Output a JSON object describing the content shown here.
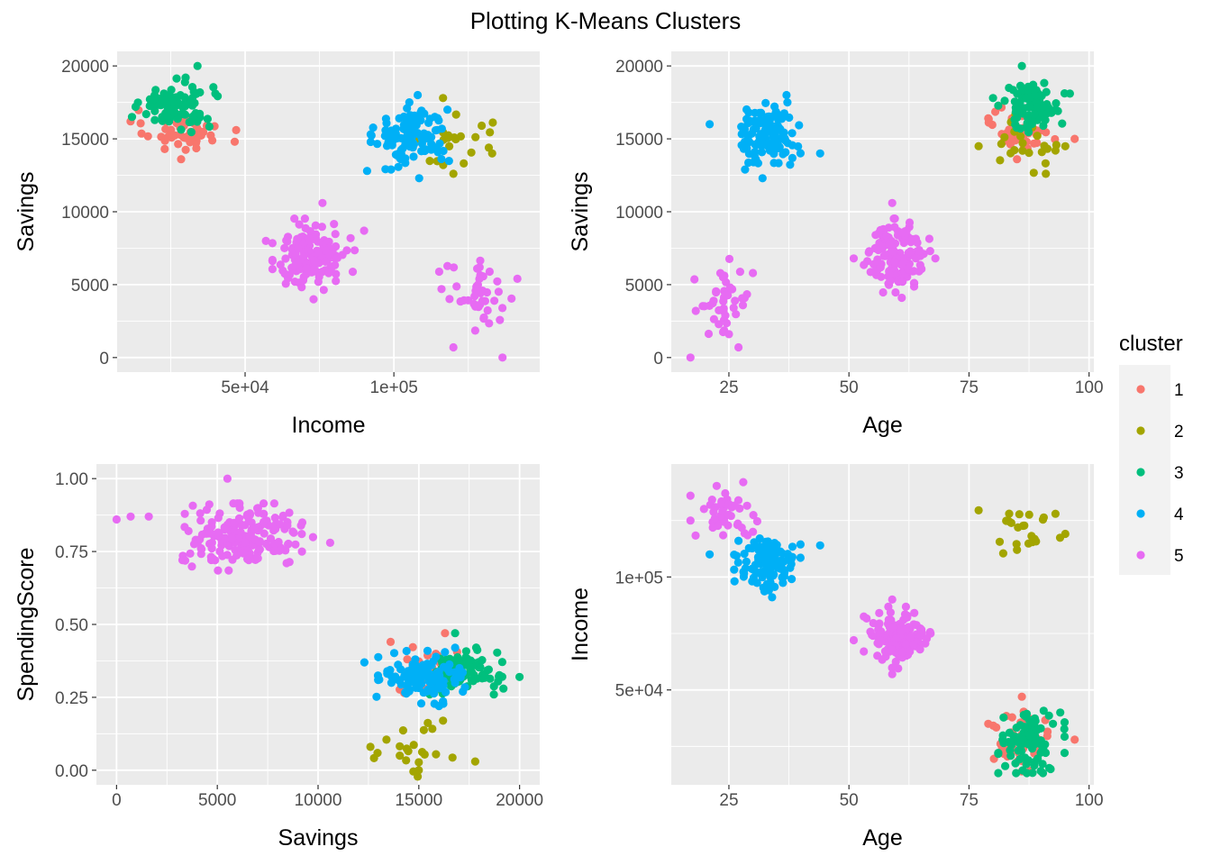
{
  "title": "Plotting K-Means Clusters",
  "colors": {
    "1": "#F8766D",
    "2": "#A3A500",
    "3": "#00BF7D",
    "4": "#00B0F6",
    "5": "#E76BF3",
    "panel_bg": "#EBEBEB",
    "grid": "#FFFFFF",
    "tick_text": "#4D4D4D"
  },
  "legend": {
    "title": "cluster",
    "placement": "right",
    "items": [
      {
        "key": "1",
        "label": "1"
      },
      {
        "key": "2",
        "label": "2"
      },
      {
        "key": "3",
        "label": "3"
      },
      {
        "key": "4",
        "label": "4"
      },
      {
        "key": "5",
        "label": "5"
      }
    ]
  },
  "chart_data": [
    {
      "type": "scatter",
      "xlabel": "Income",
      "ylabel": "Savings",
      "xlim": [
        7000,
        149000
      ],
      "ylim": [
        -1000,
        21000
      ],
      "x_ticks": [
        {
          "value": 50000,
          "label": "5e+04"
        },
        {
          "value": 100000,
          "label": "1e+05"
        }
      ],
      "y_ticks": [
        {
          "value": 0,
          "label": "0"
        },
        {
          "value": 5000,
          "label": "5000"
        },
        {
          "value": 10000,
          "label": "10000"
        },
        {
          "value": 15000,
          "label": "15000"
        },
        {
          "value": 20000,
          "label": "20000"
        }
      ],
      "grid": true,
      "clusters": [
        {
          "cluster": "1",
          "n": 55,
          "x_center": 28000,
          "x_spread": 6000,
          "y_center": 15600,
          "y_spread": 700,
          "extremes": [
            [
              11500,
              16200
            ],
            [
              47000,
              15600
            ],
            [
              46500,
              14800
            ],
            [
              23000,
              14300
            ],
            [
              28500,
              13600
            ]
          ]
        },
        {
          "cluster": "2",
          "n": 24,
          "x_center": 121000,
          "x_spread": 6000,
          "y_center": 14600,
          "y_spread": 900,
          "extremes": [
            [
              116500,
              17800
            ],
            [
              129500,
              15900
            ],
            [
              133000,
              14000
            ],
            [
              120000,
              12600
            ]
          ]
        },
        {
          "cluster": "3",
          "n": 90,
          "x_center": 27000,
          "x_spread": 6000,
          "y_center": 17300,
          "y_spread": 800,
          "extremes": [
            [
              12000,
              16500
            ],
            [
              40000,
              18100
            ],
            [
              34000,
              20000
            ],
            [
              30000,
              19200
            ]
          ]
        },
        {
          "cluster": "4",
          "n": 115,
          "x_center": 106000,
          "x_spread": 6000,
          "y_center": 15200,
          "y_spread": 1000,
          "extremes": [
            [
              91000,
              12800
            ],
            [
              108000,
              18000
            ],
            [
              108500,
              12300
            ],
            [
              118000,
              17000
            ]
          ]
        },
        {
          "cluster": "5",
          "n": 150,
          "x_center": 73000,
          "x_spread": 6000,
          "y_center": 7000,
          "y_spread": 1100,
          "extremes": [
            [
              57000,
              8000
            ],
            [
              90000,
              8700
            ],
            [
              76000,
              10600
            ],
            [
              73000,
              4000
            ]
          ]
        },
        {
          "cluster": "5",
          "n": 45,
          "x_center": 129000,
          "x_spread": 6000,
          "y_center": 4000,
          "y_spread": 1200,
          "extremes": [
            [
              120000,
              700
            ],
            [
              141500,
              5400
            ],
            [
              136500,
              0
            ],
            [
              128000,
              6100
            ],
            [
              116000,
              4700
            ]
          ]
        }
      ]
    },
    {
      "type": "scatter",
      "xlabel": "Age",
      "ylabel": "Savings",
      "xlim": [
        13,
        101
      ],
      "ylim": [
        -1000,
        21000
      ],
      "x_ticks": [
        {
          "value": 25,
          "label": "25"
        },
        {
          "value": 50,
          "label": "50"
        },
        {
          "value": 75,
          "label": "75"
        },
        {
          "value": 100,
          "label": "100"
        }
      ],
      "y_ticks": [
        {
          "value": 0,
          "label": "0"
        },
        {
          "value": 5000,
          "label": "5000"
        },
        {
          "value": 10000,
          "label": "10000"
        },
        {
          "value": 15000,
          "label": "15000"
        },
        {
          "value": 20000,
          "label": "20000"
        }
      ],
      "grid": true,
      "clusters": [
        {
          "cluster": "1",
          "n": 55,
          "x_center": 86,
          "x_spread": 3,
          "y_center": 15600,
          "y_spread": 700,
          "extremes": [
            [
              79,
              16400
            ],
            [
              97,
              15000
            ],
            [
              85,
              13600
            ]
          ]
        },
        {
          "cluster": "2",
          "n": 24,
          "x_center": 87,
          "x_spread": 3.5,
          "y_center": 14600,
          "y_spread": 900,
          "extremes": [
            [
              77,
              14500
            ],
            [
              91,
              12600
            ],
            [
              93,
              14200
            ]
          ]
        },
        {
          "cluster": "3",
          "n": 90,
          "x_center": 88,
          "x_spread": 3,
          "y_center": 17300,
          "y_spread": 800,
          "extremes": [
            [
              86,
              20000
            ],
            [
              80,
              17800
            ],
            [
              96,
              18100
            ]
          ]
        },
        {
          "cluster": "4",
          "n": 115,
          "x_center": 33,
          "x_spread": 3,
          "y_center": 15200,
          "y_spread": 1000,
          "extremes": [
            [
              21,
              16000
            ],
            [
              44,
              14000
            ],
            [
              37,
              18000
            ],
            [
              32,
              12300
            ]
          ]
        },
        {
          "cluster": "5",
          "n": 150,
          "x_center": 60,
          "x_spread": 3,
          "y_center": 7000,
          "y_spread": 1100,
          "extremes": [
            [
              51,
              6800
            ],
            [
              59,
              10600
            ],
            [
              68,
              6800
            ],
            [
              61,
              4100
            ]
          ]
        },
        {
          "cluster": "5",
          "n": 45,
          "x_center": 24,
          "x_spread": 3,
          "y_center": 4000,
          "y_spread": 1200,
          "extremes": [
            [
              17,
              0
            ],
            [
              27,
              700
            ],
            [
              30,
              5800
            ],
            [
              25,
              1600
            ]
          ]
        }
      ]
    },
    {
      "type": "scatter",
      "xlabel": "Savings",
      "ylabel": "SpendingScore",
      "xlim": [
        -1000,
        21000
      ],
      "ylim": [
        -0.05,
        1.05
      ],
      "x_ticks": [
        {
          "value": 0,
          "label": "0"
        },
        {
          "value": 5000,
          "label": "5000"
        },
        {
          "value": 10000,
          "label": "10000"
        },
        {
          "value": 15000,
          "label": "15000"
        },
        {
          "value": 20000,
          "label": "20000"
        }
      ],
      "y_ticks": [
        {
          "value": 0,
          "label": "0.00"
        },
        {
          "value": 0.25,
          "label": "0.25"
        },
        {
          "value": 0.5,
          "label": "0.50"
        },
        {
          "value": 0.75,
          "label": "0.75"
        },
        {
          "value": 1.0,
          "label": "1.00"
        }
      ],
      "grid": true,
      "clusters": [
        {
          "cluster": "1",
          "n": 55,
          "x_center": 15600,
          "x_spread": 700,
          "y_center": 0.33,
          "y_spread": 0.04,
          "extremes": [
            [
              13600,
              0.44
            ],
            [
              16300,
              0.47
            ]
          ]
        },
        {
          "cluster": "2",
          "n": 24,
          "x_center": 14600,
          "x_spread": 900,
          "y_center": 0.07,
          "y_spread": 0.04,
          "extremes": [
            [
              12600,
              0.08
            ],
            [
              17800,
              0.03
            ],
            [
              16200,
              0.17
            ],
            [
              15000,
              0.0
            ]
          ]
        },
        {
          "cluster": "3",
          "n": 90,
          "x_center": 17300,
          "x_spread": 800,
          "y_center": 0.34,
          "y_spread": 0.035,
          "extremes": [
            [
              20000,
              0.32
            ],
            [
              16800,
              0.47
            ],
            [
              19200,
              0.28
            ]
          ]
        },
        {
          "cluster": "4",
          "n": 115,
          "x_center": 15200,
          "x_spread": 1000,
          "y_center": 0.32,
          "y_spread": 0.04,
          "extremes": [
            [
              12300,
              0.37
            ],
            [
              16000,
              0.22
            ],
            [
              16800,
              0.42
            ]
          ]
        },
        {
          "cluster": "5",
          "n": 195,
          "x_center": 6300,
          "x_spread": 1500,
          "y_center": 0.8,
          "y_spread": 0.05,
          "extremes": [
            [
              0,
              0.86
            ],
            [
              700,
              0.87
            ],
            [
              1600,
              0.87
            ],
            [
              5500,
              1.0
            ],
            [
              10600,
              0.78
            ],
            [
              9200,
              0.75
            ]
          ]
        }
      ]
    },
    {
      "type": "scatter",
      "xlabel": "Age",
      "ylabel": "Income",
      "xlim": [
        13,
        101
      ],
      "ylim": [
        8000,
        150000
      ],
      "x_ticks": [
        {
          "value": 25,
          "label": "25"
        },
        {
          "value": 50,
          "label": "50"
        },
        {
          "value": 75,
          "label": "75"
        },
        {
          "value": 100,
          "label": "100"
        }
      ],
      "y_ticks": [
        {
          "value": 50000,
          "label": "5e+04"
        },
        {
          "value": 100000,
          "label": "1e+05"
        }
      ],
      "grid": true,
      "clusters": [
        {
          "cluster": "1",
          "n": 55,
          "x_center": 86,
          "x_spread": 3,
          "y_center": 28000,
          "y_spread": 6000,
          "extremes": [
            [
              79,
              35000
            ],
            [
              86,
              47000
            ],
            [
              86,
              14000
            ],
            [
              97,
              28000
            ]
          ]
        },
        {
          "cluster": "2",
          "n": 24,
          "x_center": 87,
          "x_spread": 3.5,
          "y_center": 121000,
          "y_spread": 5000,
          "extremes": [
            [
              77,
              129500
            ],
            [
              93,
              128000
            ],
            [
              85,
              112000
            ]
          ]
        },
        {
          "cluster": "3",
          "n": 90,
          "x_center": 88,
          "x_spread": 3,
          "y_center": 27000,
          "y_spread": 6000,
          "extremes": [
            [
              92,
              15000
            ],
            [
              94,
              40000
            ],
            [
              82,
              28000
            ]
          ]
        },
        {
          "cluster": "4",
          "n": 115,
          "x_center": 33,
          "x_spread": 3,
          "y_center": 106000,
          "y_spread": 6000,
          "extremes": [
            [
              21,
              110000
            ],
            [
              44,
              114000
            ],
            [
              34,
              91000
            ],
            [
              27,
              116000
            ]
          ]
        },
        {
          "cluster": "5",
          "n": 150,
          "x_center": 60,
          "x_spread": 3,
          "y_center": 73000,
          "y_spread": 6000,
          "extremes": [
            [
              51,
              72000
            ],
            [
              59,
              90000
            ],
            [
              67,
              75000
            ],
            [
              59,
              57000
            ]
          ]
        },
        {
          "cluster": "5",
          "n": 45,
          "x_center": 24,
          "x_spread": 3,
          "y_center": 128000,
          "y_spread": 6000,
          "extremes": [
            [
              17,
              136000
            ],
            [
              28,
              142000
            ],
            [
              30,
              120000
            ],
            [
              17,
              125000
            ]
          ]
        }
      ]
    }
  ]
}
